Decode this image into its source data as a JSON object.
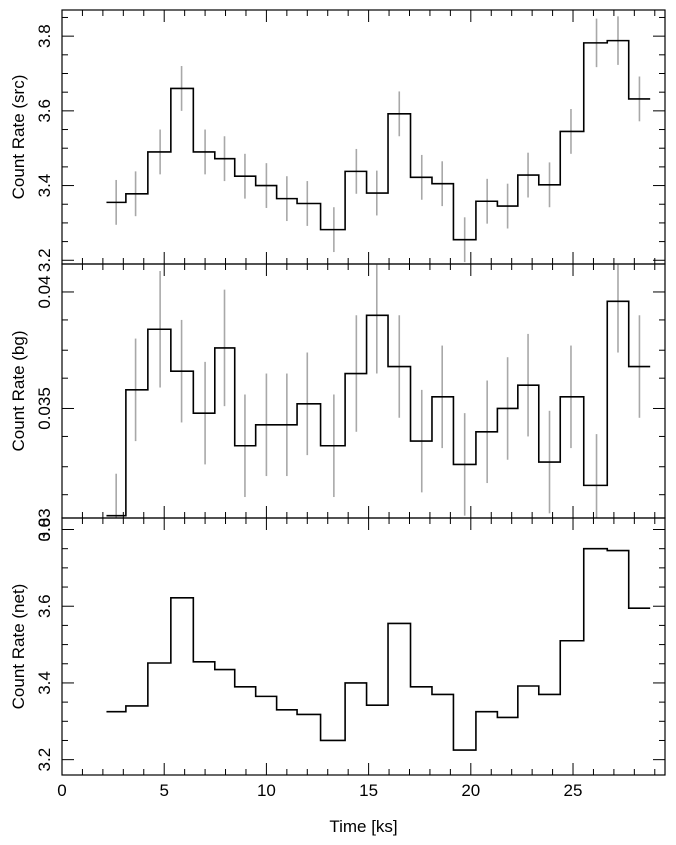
{
  "chart_data": [
    {
      "type": "line",
      "style": "step",
      "ylabel": "Count Rate (src)",
      "xlim": [
        0,
        29.5
      ],
      "ylim": [
        3.19,
        3.87
      ],
      "yticks_major": [
        3.2,
        3.4,
        3.6,
        3.8
      ],
      "ytick_labels": [
        "3.2",
        "3.4",
        "3.6",
        "3.8"
      ],
      "x": [
        2.65,
        3.6,
        4.8,
        5.85,
        7.0,
        7.95,
        8.95,
        10.0,
        11.0,
        12.0,
        13.3,
        14.4,
        15.4,
        16.5,
        17.6,
        18.6,
        19.7,
        20.8,
        21.8,
        22.8,
        23.85,
        24.9,
        26.15,
        27.2,
        28.25
      ],
      "y": [
        3.355,
        3.378,
        3.49,
        3.66,
        3.49,
        3.472,
        3.425,
        3.4,
        3.365,
        3.352,
        3.282,
        3.438,
        3.38,
        3.592,
        3.422,
        3.405,
        3.255,
        3.358,
        3.345,
        3.428,
        3.402,
        3.545,
        3.782,
        3.788,
        3.632
      ],
      "yerr": [
        0.06,
        0.06,
        0.06,
        0.06,
        0.06,
        0.06,
        0.06,
        0.06,
        0.06,
        0.06,
        0.06,
        0.06,
        0.06,
        0.06,
        0.06,
        0.06,
        0.06,
        0.06,
        0.06,
        0.06,
        0.06,
        0.06,
        0.065,
        0.065,
        0.06
      ]
    },
    {
      "type": "line",
      "style": "step",
      "ylabel": "Count Rate (bg)",
      "xlim": [
        0,
        29.5
      ],
      "ylim": [
        0.0303,
        0.0412
      ],
      "yticks_major": [
        0.03,
        0.035,
        0.04
      ],
      "ytick_labels": [
        "0.03",
        "0.035",
        "0.04"
      ],
      "x": [
        2.65,
        3.6,
        4.8,
        5.85,
        7.0,
        7.95,
        8.95,
        10.0,
        11.0,
        12.0,
        13.3,
        14.4,
        15.4,
        16.5,
        17.6,
        18.6,
        19.7,
        20.8,
        21.8,
        22.8,
        23.85,
        24.9,
        26.15,
        27.2,
        28.25
      ],
      "y": [
        0.0304,
        0.0358,
        0.0384,
        0.0366,
        0.0348,
        0.0376,
        0.0334,
        0.0343,
        0.0343,
        0.0352,
        0.0334,
        0.0365,
        0.039,
        0.0368,
        0.0336,
        0.0355,
        0.0326,
        0.034,
        0.035,
        0.036,
        0.0327,
        0.0355,
        0.0317,
        0.0396,
        0.0368
      ],
      "yerr": [
        0.0018,
        0.0022,
        0.0025,
        0.0022,
        0.0022,
        0.0025,
        0.0022,
        0.0022,
        0.0022,
        0.0022,
        0.0022,
        0.0025,
        0.0025,
        0.0022,
        0.0022,
        0.0022,
        0.0022,
        0.0022,
        0.0022,
        0.0022,
        0.0022,
        0.0022,
        0.0022,
        0.0022,
        0.0022
      ]
    },
    {
      "type": "line",
      "style": "step",
      "ylabel": "Count Rate (net)",
      "xlabel": "Time [ks]",
      "xlim": [
        0,
        29.5
      ],
      "ylim": [
        3.16,
        3.83
      ],
      "yticks_major": [
        3.2,
        3.4,
        3.6,
        3.8
      ],
      "ytick_labels": [
        "3.2",
        "3.4",
        "3.6",
        "3.8"
      ],
      "xticks_major": [
        0,
        5,
        10,
        15,
        20,
        25
      ],
      "xtick_labels": [
        "0",
        "5",
        "10",
        "15",
        "20",
        "25"
      ],
      "x": [
        2.65,
        3.6,
        4.8,
        5.85,
        7.0,
        7.95,
        8.95,
        10.0,
        11.0,
        12.0,
        13.3,
        14.4,
        15.4,
        16.5,
        17.6,
        18.6,
        19.7,
        20.8,
        21.8,
        22.8,
        23.85,
        24.9,
        26.15,
        27.2,
        28.25
      ],
      "y": [
        3.325,
        3.34,
        3.452,
        3.622,
        3.455,
        3.435,
        3.39,
        3.365,
        3.33,
        3.318,
        3.25,
        3.4,
        3.342,
        3.555,
        3.39,
        3.37,
        3.225,
        3.325,
        3.31,
        3.392,
        3.37,
        3.51,
        3.75,
        3.745,
        3.595
      ]
    }
  ]
}
